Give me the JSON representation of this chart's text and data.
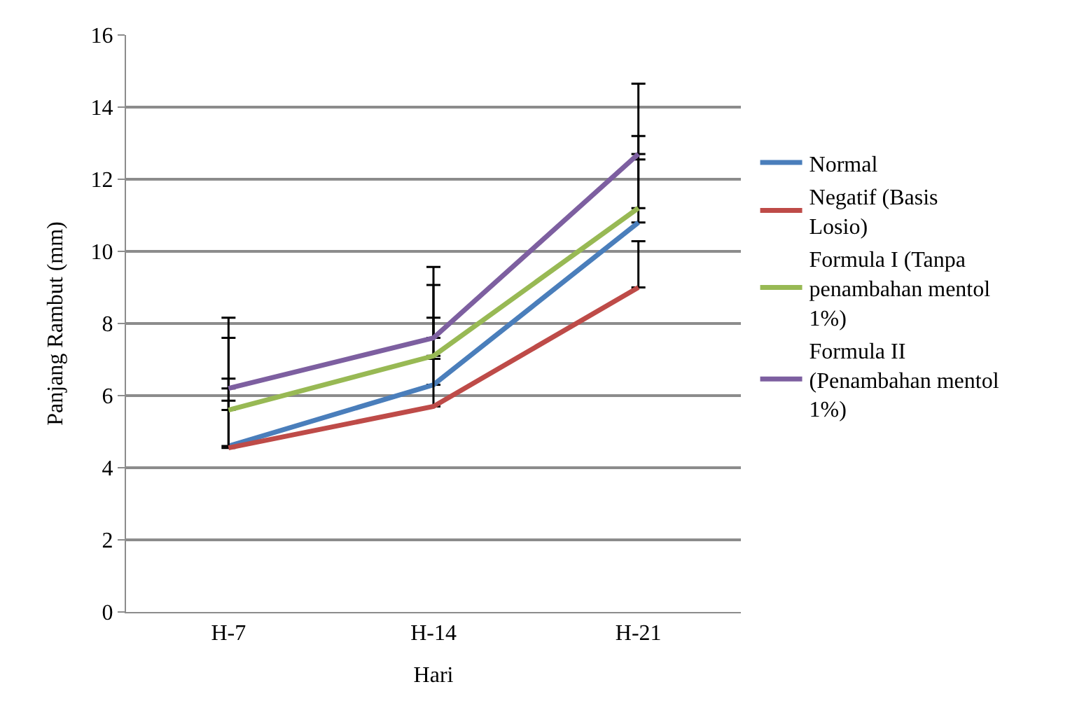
{
  "chart_data": {
    "type": "line",
    "xlabel": "Hari",
    "ylabel": "Panjang Rambut (mm)",
    "categories": [
      "H-7",
      "H-14",
      "H-21"
    ],
    "series": [
      {
        "name": "Normal",
        "color": "#4a7ebb",
        "values": [
          4.6,
          6.3,
          10.8
        ],
        "errors": [
          [
            4.6,
            6.47
          ],
          [
            6.3,
            8.16
          ],
          [
            10.8,
            12.55
          ]
        ]
      },
      {
        "name": "Negatif (Basis Losio)",
        "color": "#be4b48",
        "values": [
          4.55,
          5.7,
          9.0
        ],
        "errors": [
          [
            4.55,
            5.86
          ],
          [
            5.7,
            7.02
          ],
          [
            9.0,
            10.28
          ]
        ]
      },
      {
        "name": "Formula I (Tanpa penambahan mentol 1%)",
        "color": "#98b954",
        "values": [
          5.6,
          7.1,
          11.2
        ],
        "errors": [
          [
            5.6,
            7.6
          ],
          [
            7.1,
            9.07
          ],
          [
            11.2,
            13.2
          ]
        ]
      },
      {
        "name": "Formula II (Penambahan mentol 1%)",
        "color": "#7d5fa0",
        "values": [
          6.2,
          7.6,
          12.7
        ],
        "errors": [
          [
            6.2,
            8.16
          ],
          [
            7.6,
            9.57
          ],
          [
            12.7,
            14.65
          ]
        ]
      }
    ],
    "ylim": [
      0,
      16
    ],
    "yticks": [
      0,
      2,
      4,
      6,
      8,
      10,
      12,
      14,
      16
    ],
    "grid": "y",
    "legend": "right",
    "marker": "none",
    "line_style": "solid"
  }
}
